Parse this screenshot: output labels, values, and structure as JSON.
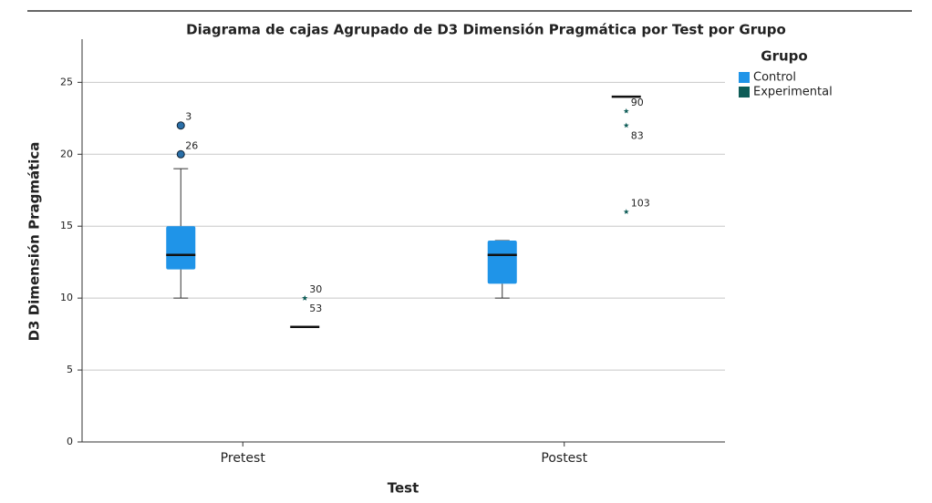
{
  "chart_data": {
    "type": "boxplot",
    "title": "Diagrama de cajas Agrupado de D3 Dimensión Pragmática por Test por Grupo",
    "x_label": "Test",
    "y_label": "D3 Dimensión Pragmática",
    "categories": [
      "Pretest",
      "Postest"
    ],
    "legend_title": "Grupo",
    "legend": "upper right",
    "ylim": [
      0,
      28
    ],
    "yticks": [
      0,
      5,
      10,
      15,
      20,
      25
    ],
    "grid": true,
    "series": [
      {
        "name": "Control",
        "color": "#1f94e8",
        "boxes": [
          {
            "min": 10,
            "q1": 12,
            "median": 13,
            "q3": 15,
            "max": 19,
            "outliers": [
              {
                "value": 22,
                "label": "3",
                "marker": "circle"
              },
              {
                "value": 20,
                "label": "26",
                "marker": "circle"
              }
            ]
          },
          {
            "min": 10,
            "q1": 11,
            "median": 13,
            "q3": 14,
            "max": 14,
            "outliers": []
          }
        ]
      },
      {
        "name": "Experimental",
        "color": "#0e5c57",
        "boxes": [
          {
            "min": 8,
            "q1": 8,
            "median": 8,
            "q3": 8,
            "max": 8,
            "outliers": [
              {
                "value": 10,
                "label": "30",
                "marker": "star"
              },
              {
                "value": 10,
                "label": "53",
                "marker": "star"
              }
            ]
          },
          {
            "min": 24,
            "q1": 24,
            "median": 24,
            "q3": 24,
            "max": 24,
            "outliers": [
              {
                "value": 23,
                "label": "90",
                "marker": "star"
              },
              {
                "value": 22,
                "label": "83",
                "marker": "star"
              },
              {
                "value": 16,
                "label": "103",
                "marker": "star"
              }
            ]
          }
        ]
      }
    ]
  }
}
